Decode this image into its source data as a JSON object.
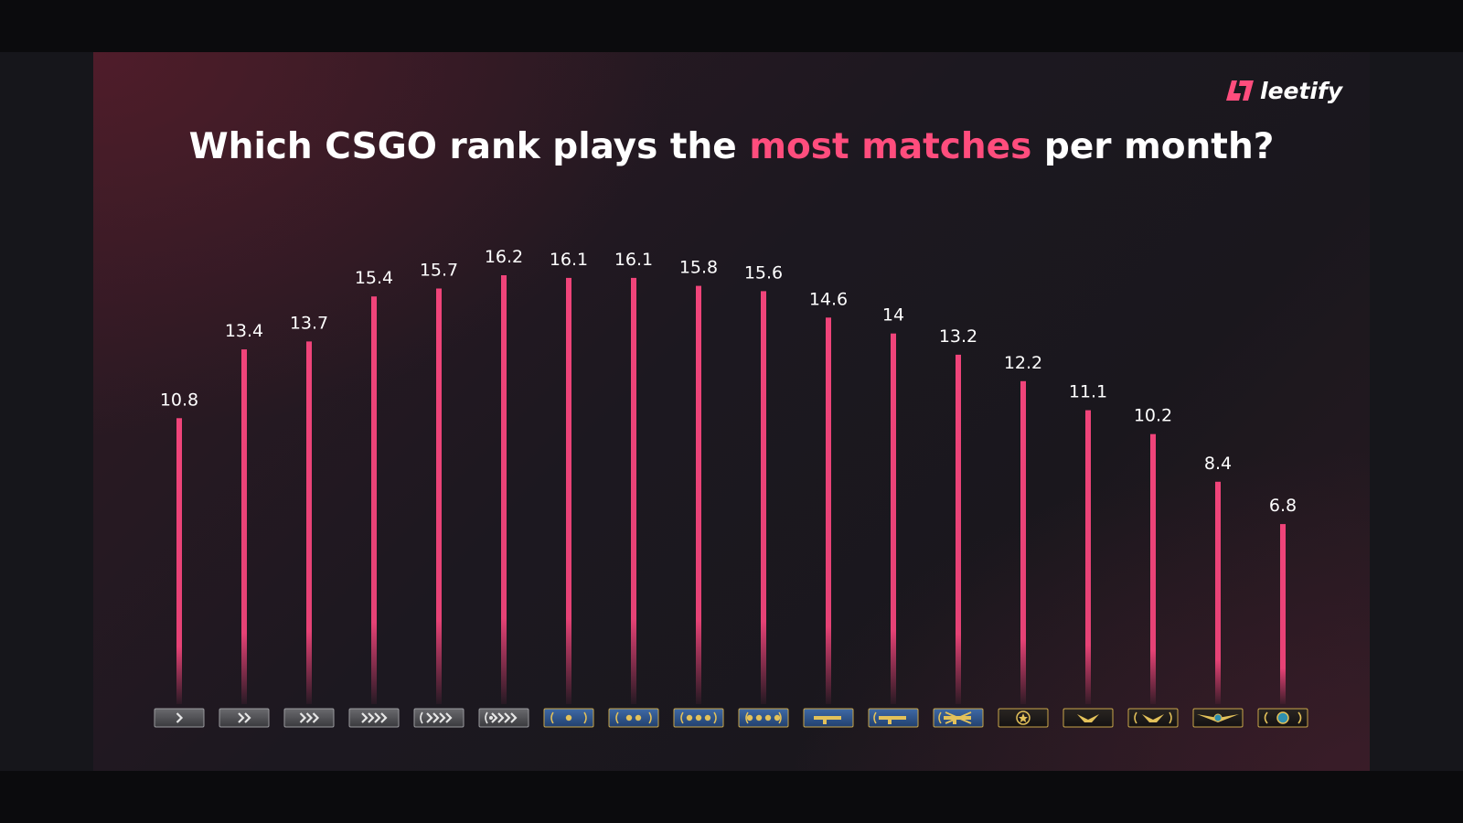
{
  "brand": {
    "name": "leetify"
  },
  "title": {
    "prefix": "Which CSGO rank plays the ",
    "highlight": "most matches",
    "suffix": " per month?"
  },
  "colors": {
    "accent": "#ff4d7d",
    "bar": "#f0447a",
    "background": "#1e1820"
  },
  "chart_data": {
    "type": "bar",
    "title": "Which CSGO rank plays the most matches per month?",
    "xlabel": "",
    "ylabel": "",
    "ylim": [
      0,
      16.2
    ],
    "categories": [
      "Silver I",
      "Silver II",
      "Silver III",
      "Silver IV",
      "Silver Elite",
      "Silver Elite Master",
      "Gold Nova I",
      "Gold Nova II",
      "Gold Nova III",
      "Gold Nova Master",
      "Master Guardian I",
      "Master Guardian II",
      "Master Guardian Elite",
      "Distinguished Master Guardian",
      "Legendary Eagle",
      "Legendary Eagle Master",
      "Supreme Master First Class",
      "The Global Elite"
    ],
    "values": [
      10.8,
      13.4,
      13.7,
      15.4,
      15.7,
      16.2,
      16.1,
      16.1,
      15.8,
      15.6,
      14.6,
      14,
      13.2,
      12.2,
      11.1,
      10.2,
      8.4,
      6.8
    ],
    "labels": [
      "10.8",
      "13.4",
      "13.7",
      "15.4",
      "15.7",
      "16.2",
      "16.1",
      "16.1",
      "15.8",
      "15.6",
      "14.6",
      "14",
      "13.2",
      "12.2",
      "11.1",
      "10.2",
      "8.4",
      "6.8"
    ],
    "rank_icons": [
      "silver-1-icon",
      "silver-2-icon",
      "silver-3-icon",
      "silver-4-icon",
      "silver-elite-icon",
      "silver-elite-master-icon",
      "gold-nova-1-icon",
      "gold-nova-2-icon",
      "gold-nova-3-icon",
      "gold-nova-master-icon",
      "master-guardian-1-icon",
      "master-guardian-2-icon",
      "master-guardian-elite-icon",
      "distinguished-master-guardian-icon",
      "legendary-eagle-icon",
      "legendary-eagle-master-icon",
      "supreme-master-first-class-icon",
      "global-elite-icon"
    ],
    "grid": false,
    "legend": "none"
  }
}
